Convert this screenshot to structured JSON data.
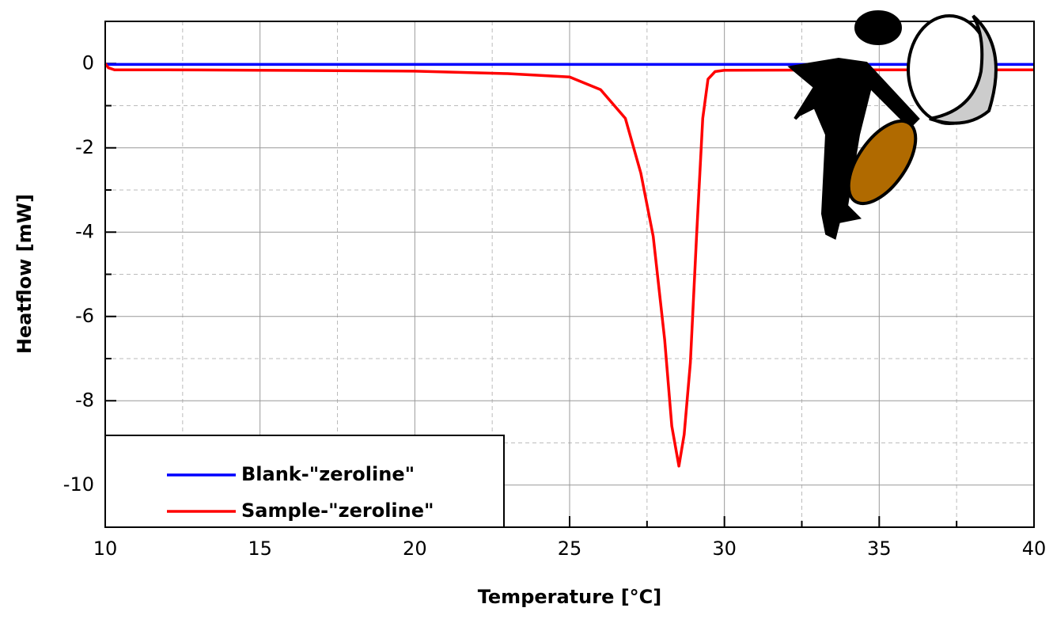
{
  "chart_data": {
    "type": "line",
    "x_label": "Temperature [°C]",
    "y_label": "Heatflow [mW]",
    "xlim": [
      10,
      40
    ],
    "ylim": [
      -11,
      1
    ],
    "xticks": [
      10,
      15,
      20,
      25,
      30,
      35,
      40
    ],
    "yticks": [
      -10,
      -8,
      -6,
      -4,
      -2,
      0
    ],
    "xminorticks": [
      12.5,
      17.5,
      22.5,
      27.5,
      32.5,
      37.5
    ],
    "yminorticks": [
      -9,
      -7,
      -5,
      -3,
      -1
    ],
    "grid": true,
    "legend": "lower left",
    "series": [
      {
        "name": "Blank-\"zeroline\"",
        "color": "#0000ff",
        "x": [
          10,
          15,
          20,
          25,
          30,
          35,
          40
        ],
        "values": [
          -0.02,
          -0.02,
          -0.02,
          -0.02,
          -0.02,
          -0.02,
          -0.02
        ]
      },
      {
        "name": "Sample-\"zeroline\"",
        "color": "#ff0000",
        "x": [
          10,
          10.1,
          10.3,
          12,
          15,
          20,
          23,
          25,
          26,
          26.8,
          27.3,
          27.7,
          28.07,
          28.3,
          28.53,
          28.7,
          28.9,
          29.1,
          29.3,
          29.47,
          29.7,
          30,
          35,
          40
        ],
        "values": [
          0,
          -0.1,
          -0.15,
          -0.15,
          -0.16,
          -0.18,
          -0.24,
          -0.32,
          -0.62,
          -1.3,
          -2.6,
          -4.1,
          -6.55,
          -8.6,
          -9.55,
          -8.8,
          -7.1,
          -4.1,
          -1.3,
          -0.37,
          -0.19,
          -0.16,
          -0.15,
          -0.15
        ]
      }
    ]
  }
}
